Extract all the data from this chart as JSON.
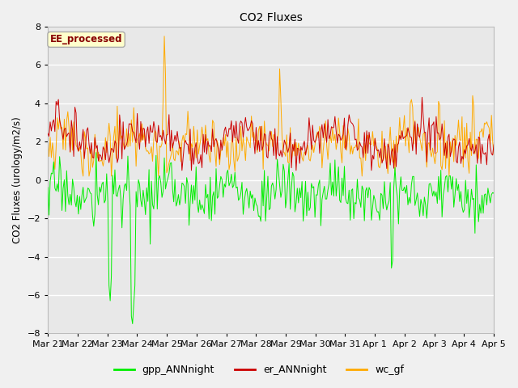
{
  "title": "CO2 Fluxes",
  "ylabel": "CO2 Fluxes (urology/m2/s)",
  "xlabel": "",
  "ylim": [
    -8,
    8
  ],
  "yticks": [
    -8,
    -6,
    -4,
    -2,
    0,
    2,
    4,
    6,
    8
  ],
  "background_color": "#f0f0f0",
  "plot_bg_color": "#e8e8e8",
  "grid_color": "#ffffff",
  "annotation_text": "EE_processed",
  "annotation_bg": "#ffffcc",
  "annotation_border": "#aaaaaa",
  "annotation_text_color": "#880000",
  "colors": {
    "gpp_ANNnight": "#00ee00",
    "er_ANNnight": "#cc0000",
    "wc_gf": "#ffaa00"
  },
  "legend_labels": [
    "gpp_ANNnight",
    "er_ANNnight",
    "wc_gf"
  ],
  "n_points": 380,
  "x_tick_labels": [
    "Mar 21",
    "Mar 22",
    "Mar 23",
    "Mar 24",
    "Mar 25",
    "Mar 26",
    "Mar 27",
    "Mar 28",
    "Mar 29",
    "Mar 30",
    "Mar 31",
    "Apr 1",
    "Apr 2",
    "Apr 3",
    "Apr 4",
    "Apr 5"
  ],
  "linewidth": 0.7,
  "figwidth": 6.4,
  "figheight": 4.8,
  "dpi": 100
}
